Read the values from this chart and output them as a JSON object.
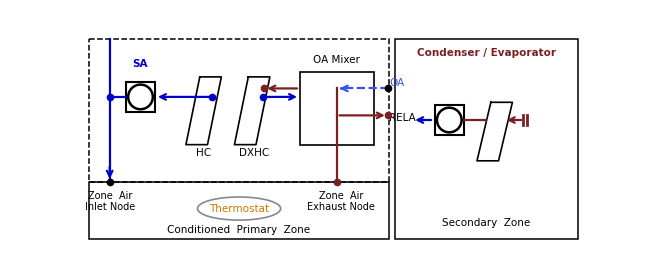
{
  "fig_width": 6.49,
  "fig_height": 2.75,
  "dpi": 100,
  "blue": "#0000cc",
  "dark_red": "#7b2020",
  "blue_dashed": "#3355ee",
  "black": "#000000",
  "gray": "#888888",
  "orange": "#cc7700",
  "primary_zone_label": "Conditioned  Primary  Zone",
  "secondary_zone_label": "Secondary  Zone",
  "sa_label": "SA",
  "hc_label": "HC",
  "dxhc_label": "DXHC",
  "oa_mixer_label": "OA Mixer",
  "oa_label": "OA",
  "rela_label": "RELA",
  "zone_inlet_label": "Zone  Air\nInlet Node",
  "zone_exhaust_label": "Zone  Air\nExhaust Node",
  "thermostat_label": "Thermostat",
  "condenser_label": "Condenser / Evaporator"
}
